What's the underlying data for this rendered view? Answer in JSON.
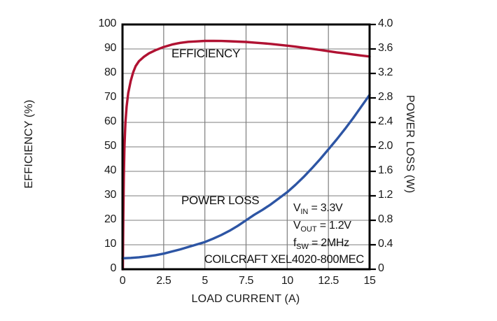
{
  "chart_data": {
    "type": "line",
    "title": "",
    "xlabel": "LOAD CURRENT (A)",
    "xlim": [
      0,
      15
    ],
    "grid": true,
    "x_ticks": [
      {
        "v": 0,
        "label": "0"
      },
      {
        "v": 2.5,
        "label": "2.5"
      },
      {
        "v": 5,
        "label": "5"
      },
      {
        "v": 7.5,
        "label": "7.5"
      },
      {
        "v": 10,
        "label": "10"
      },
      {
        "v": 12.5,
        "label": "12.5"
      },
      {
        "v": 15,
        "label": "15"
      }
    ],
    "axes": {
      "left": {
        "label": "EFFICIENCY (%)",
        "lim": [
          0,
          100
        ],
        "ticks": [
          {
            "v": 0,
            "label": "0"
          },
          {
            "v": 10,
            "label": "10"
          },
          {
            "v": 20,
            "label": "20"
          },
          {
            "v": 30,
            "label": "30"
          },
          {
            "v": 40,
            "label": "40"
          },
          {
            "v": 50,
            "label": "50"
          },
          {
            "v": 60,
            "label": "60"
          },
          {
            "v": 70,
            "label": "70"
          },
          {
            "v": 80,
            "label": "80"
          },
          {
            "v": 90,
            "label": "90"
          },
          {
            "v": 100,
            "label": "100"
          }
        ]
      },
      "right": {
        "label": "POWER LOSS (W)",
        "lim": [
          0,
          4.0
        ],
        "ticks": [
          {
            "v": 0,
            "label": "0"
          },
          {
            "v": 0.4,
            "label": "0.4"
          },
          {
            "v": 0.8,
            "label": "0.8"
          },
          {
            "v": 1.2,
            "label": "1.2"
          },
          {
            "v": 1.6,
            "label": "1.6"
          },
          {
            "v": 2.0,
            "label": "2.0"
          },
          {
            "v": 2.4,
            "label": "2.4"
          },
          {
            "v": 2.8,
            "label": "2.8"
          },
          {
            "v": 3.2,
            "label": "3.2"
          },
          {
            "v": 3.6,
            "label": "3.6"
          },
          {
            "v": 4.0,
            "label": "4.0"
          }
        ]
      }
    },
    "colors": {
      "efficiency": "#B01232",
      "power_loss": "#2D55A4",
      "grid": "#7d7d7d",
      "frame": "#000000"
    },
    "series": [
      {
        "name": "EFFICIENCY",
        "axis": "left",
        "color": "#B01232",
        "points": [
          [
            0.02,
            0
          ],
          [
            0.05,
            22
          ],
          [
            0.08,
            38
          ],
          [
            0.12,
            50
          ],
          [
            0.18,
            60
          ],
          [
            0.25,
            66.5
          ],
          [
            0.35,
            72
          ],
          [
            0.5,
            77
          ],
          [
            0.65,
            80.5
          ],
          [
            0.8,
            83
          ],
          [
            1.0,
            85
          ],
          [
            1.3,
            86.8
          ],
          [
            1.6,
            88.2
          ],
          [
            2.0,
            89.5
          ],
          [
            2.5,
            90.8
          ],
          [
            3.0,
            91.8
          ],
          [
            3.5,
            92.5
          ],
          [
            4.0,
            92.9
          ],
          [
            4.5,
            93.1
          ],
          [
            5.0,
            93.3
          ],
          [
            5.5,
            93.3
          ],
          [
            6.0,
            93.25
          ],
          [
            6.5,
            93.15
          ],
          [
            7.0,
            93.0
          ],
          [
            7.5,
            92.85
          ],
          [
            8.0,
            92.6
          ],
          [
            8.5,
            92.35
          ],
          [
            9.0,
            92.05
          ],
          [
            9.5,
            91.7
          ],
          [
            10,
            91.35
          ],
          [
            10.5,
            90.95
          ],
          [
            11,
            90.5
          ],
          [
            11.5,
            90.05
          ],
          [
            12,
            89.6
          ],
          [
            12.5,
            89.1
          ],
          [
            13,
            88.6
          ],
          [
            13.5,
            88.2
          ],
          [
            14,
            87.75
          ],
          [
            14.5,
            87.3
          ],
          [
            15,
            86.9
          ]
        ]
      },
      {
        "name": "POWER LOSS",
        "axis": "right",
        "color": "#2D55A4",
        "points": [
          [
            0,
            0.18
          ],
          [
            0.5,
            0.185
          ],
          [
            1,
            0.195
          ],
          [
            1.5,
            0.21
          ],
          [
            2,
            0.23
          ],
          [
            2.5,
            0.255
          ],
          [
            3,
            0.29
          ],
          [
            3.5,
            0.325
          ],
          [
            4,
            0.365
          ],
          [
            4.5,
            0.405
          ],
          [
            5,
            0.445
          ],
          [
            5.5,
            0.5
          ],
          [
            6,
            0.56
          ],
          [
            6.5,
            0.63
          ],
          [
            7,
            0.71
          ],
          [
            7.5,
            0.8
          ],
          [
            8,
            0.89
          ],
          [
            8.5,
            0.97
          ],
          [
            9,
            1.06
          ],
          [
            9.5,
            1.16
          ],
          [
            10,
            1.26
          ],
          [
            10.5,
            1.38
          ],
          [
            11,
            1.51
          ],
          [
            11.5,
            1.65
          ],
          [
            12,
            1.8
          ],
          [
            12.5,
            1.96
          ],
          [
            13,
            2.12
          ],
          [
            13.5,
            2.29
          ],
          [
            14,
            2.47
          ],
          [
            14.5,
            2.66
          ],
          [
            15,
            2.85
          ]
        ]
      }
    ],
    "curve_labels": {
      "efficiency": "EFFICIENCY",
      "power_loss": "POWER LOSS"
    },
    "conditions": [
      {
        "pre": "V",
        "sub": "IN",
        "post": " = 3.3V"
      },
      {
        "pre": "V",
        "sub": "OUT",
        "post": " = 1.2V"
      },
      {
        "pre": "f",
        "sub": "SW",
        "post": " = 2MHz"
      }
    ],
    "part_label": "COILCRAFT XEL4020-800MEC"
  }
}
